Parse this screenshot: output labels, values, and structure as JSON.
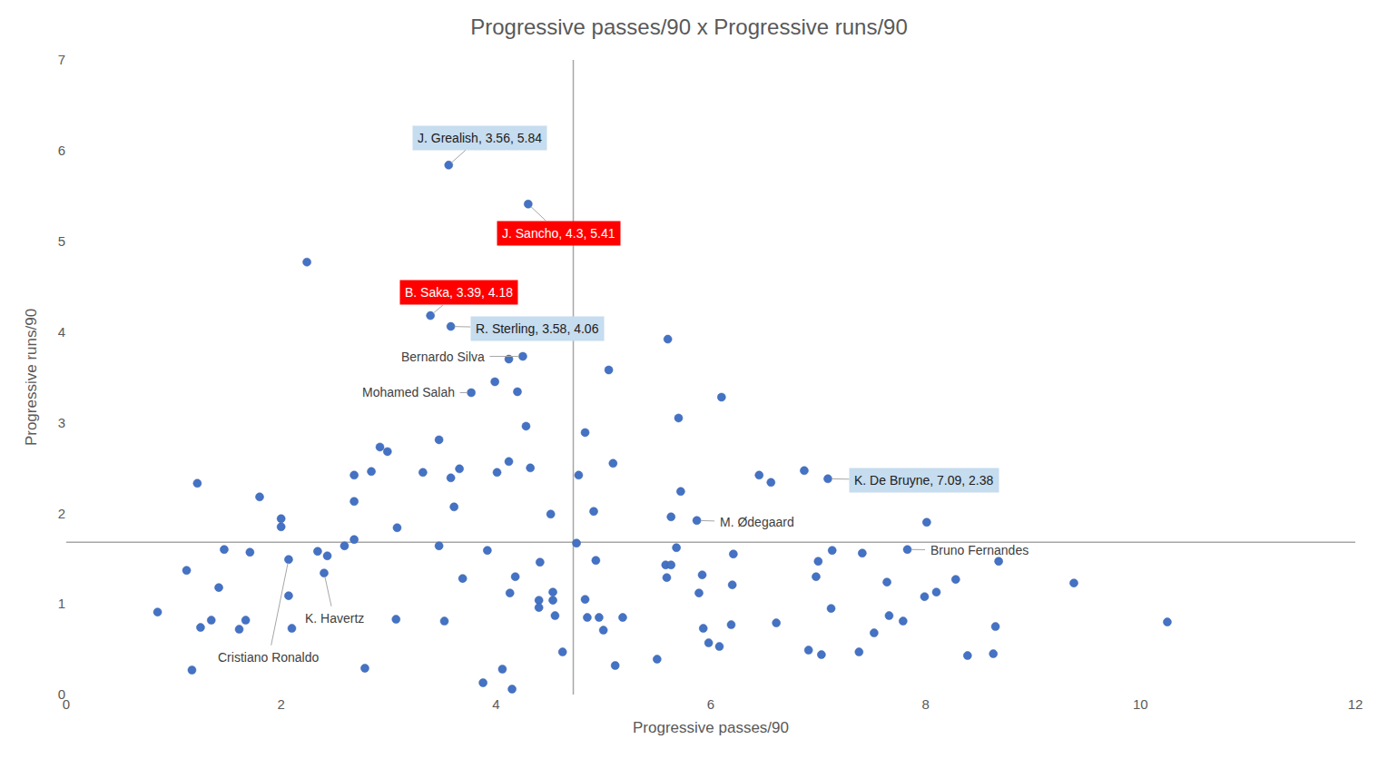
{
  "chart_data": {
    "type": "scatter",
    "title": "Progressive passes/90 x Progressive runs/90",
    "x_label": "Progressive passes/90",
    "y_label": "Progressive runs/90",
    "color": "#4472c4",
    "marker": "circle",
    "grid": false,
    "xlim": [
      0,
      12
    ],
    "xticks": [
      0,
      2,
      4,
      6,
      8,
      10,
      12
    ],
    "ylim": [
      0,
      7
    ],
    "yticks": [
      0,
      1,
      2,
      3,
      4,
      5,
      6,
      7
    ],
    "vline": 4.72,
    "hline": 1.68,
    "x": [
      3.56,
      4.3,
      2.24,
      3.39,
      3.58,
      5.6,
      4.12,
      4.25,
      5.05,
      3.99,
      3.77,
      4.2,
      6.1,
      5.7,
      4.28,
      4.83,
      3.47,
      2.92,
      2.99,
      5.09,
      4.12,
      4.32,
      3.66,
      2.84,
      3.32,
      4.01,
      6.87,
      6.45,
      2.68,
      4.77,
      3.58,
      7.09,
      6.56,
      1.22,
      5.72,
      1.8,
      2.68,
      3.61,
      4.91,
      4.51,
      5.63,
      2.0,
      5.87,
      8.01,
      2.0,
      3.08,
      2.68,
      4.75,
      2.59,
      3.47,
      1.47,
      7.83,
      7.13,
      5.68,
      3.92,
      1.71,
      2.34,
      7.41,
      2.43,
      6.21,
      2.07,
      7.0,
      8.68,
      4.93,
      4.41,
      5.58,
      5.63,
      1.12,
      2.4,
      5.92,
      4.18,
      5.59,
      3.69,
      6.98,
      8.28,
      7.64,
      9.38,
      6.2,
      1.42,
      4.13,
      4.53,
      8.1,
      5.89,
      2.07,
      7.99,
      4.4,
      4.53,
      4.83,
      4.4,
      7.12,
      0.85,
      4.55,
      7.66,
      4.85,
      4.96,
      5.18,
      3.07,
      1.35,
      1.67,
      7.79,
      3.52,
      10.25,
      6.61,
      6.19,
      8.65,
      1.25,
      5.93,
      2.1,
      1.61,
      5.0,
      7.52,
      5.98,
      6.08,
      6.91,
      7.03,
      7.38,
      4.62,
      8.39,
      8.63,
      5.5,
      5.11,
      2.78,
      1.17,
      4.06,
      3.88,
      4.15
    ],
    "values": [
      5.84,
      5.41,
      4.77,
      4.18,
      4.06,
      3.92,
      3.7,
      3.73,
      3.58,
      3.45,
      3.33,
      3.34,
      3.28,
      3.05,
      2.96,
      2.89,
      2.81,
      2.73,
      2.68,
      2.55,
      2.57,
      2.5,
      2.49,
      2.46,
      2.45,
      2.45,
      2.47,
      2.42,
      2.42,
      2.42,
      2.39,
      2.38,
      2.34,
      2.33,
      2.24,
      2.18,
      2.13,
      2.07,
      2.02,
      1.99,
      1.96,
      1.94,
      1.92,
      1.9,
      1.85,
      1.84,
      1.71,
      1.67,
      1.64,
      1.64,
      1.6,
      1.6,
      1.59,
      1.62,
      1.59,
      1.57,
      1.58,
      1.56,
      1.53,
      1.55,
      1.49,
      1.47,
      1.47,
      1.48,
      1.46,
      1.43,
      1.43,
      1.37,
      1.34,
      1.32,
      1.3,
      1.29,
      1.28,
      1.3,
      1.27,
      1.24,
      1.23,
      1.21,
      1.18,
      1.12,
      1.13,
      1.13,
      1.12,
      1.09,
      1.08,
      1.04,
      1.04,
      1.05,
      0.96,
      0.95,
      0.91,
      0.87,
      0.87,
      0.85,
      0.85,
      0.85,
      0.83,
      0.82,
      0.82,
      0.81,
      0.81,
      0.8,
      0.79,
      0.77,
      0.75,
      0.74,
      0.73,
      0.73,
      0.72,
      0.71,
      0.68,
      0.57,
      0.53,
      0.49,
      0.44,
      0.47,
      0.47,
      0.43,
      0.45,
      0.39,
      0.32,
      0.29,
      0.27,
      0.28,
      0.13,
      0.06
    ],
    "annotations": [
      {
        "text": "J. Grealish, 3.56, 5.84",
        "x": 3.56,
        "y": 5.84,
        "color": "#c6dcef"
      },
      {
        "text": "J. Sancho, 4.3, 5.41",
        "x": 4.3,
        "y": 5.41,
        "color": "#ff0000"
      },
      {
        "text": "B. Saka, 3.39, 4.18",
        "x": 3.39,
        "y": 4.18,
        "color": "#ff0000"
      },
      {
        "text": "R. Sterling, 3.58, 4.06",
        "x": 3.58,
        "y": 4.06,
        "color": "#c6dcef"
      },
      {
        "text": "Bernardo Silva",
        "x": 4.25,
        "y": 3.73
      },
      {
        "text": "Mohamed Salah",
        "x": 3.77,
        "y": 3.33
      },
      {
        "text": "K. De Bruyne, 7.09, 2.38",
        "x": 7.09,
        "y": 2.38,
        "color": "#c6dcef"
      },
      {
        "text": "M. Ødegaard",
        "x": 5.87,
        "y": 1.92
      },
      {
        "text": "Bruno Fernandes",
        "x": 7.83,
        "y": 1.6
      },
      {
        "text": "K. Havertz",
        "x": 2.4,
        "y": 1.34
      },
      {
        "text": "Cristiano Ronaldo",
        "x": 2.07,
        "y": 1.49
      }
    ]
  }
}
